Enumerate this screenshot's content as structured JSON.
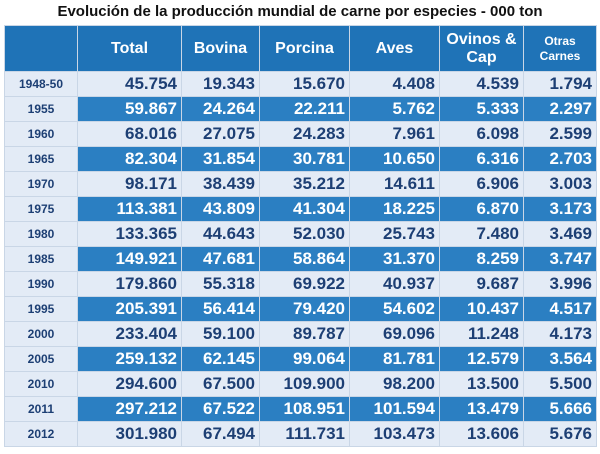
{
  "title": "Evolución de la producción mundial de carne por especies - 000 ton",
  "columns": {
    "total": "Total",
    "bovina": "Bovina",
    "porcina": "Porcina",
    "aves": "Aves",
    "ovinos_line1": "Ovinos &",
    "ovinos_line2": "Cap",
    "otras_line1": "Otras",
    "otras_line2": "Carnes"
  },
  "rows": [
    {
      "year": "1948-50",
      "total": "45.754",
      "bovina": "19.343",
      "porcina": "15.670",
      "aves": "4.408",
      "ovinos": "4.539",
      "otras": "1.794"
    },
    {
      "year": "1955",
      "total": "59.867",
      "bovina": "24.264",
      "porcina": "22.211",
      "aves": "5.762",
      "ovinos": "5.333",
      "otras": "2.297"
    },
    {
      "year": "1960",
      "total": "68.016",
      "bovina": "27.075",
      "porcina": "24.283",
      "aves": "7.961",
      "ovinos": "6.098",
      "otras": "2.599"
    },
    {
      "year": "1965",
      "total": "82.304",
      "bovina": "31.854",
      "porcina": "30.781",
      "aves": "10.650",
      "ovinos": "6.316",
      "otras": "2.703"
    },
    {
      "year": "1970",
      "total": "98.171",
      "bovina": "38.439",
      "porcina": "35.212",
      "aves": "14.611",
      "ovinos": "6.906",
      "otras": "3.003"
    },
    {
      "year": "1975",
      "total": "113.381",
      "bovina": "43.809",
      "porcina": "41.304",
      "aves": "18.225",
      "ovinos": "6.870",
      "otras": "3.173"
    },
    {
      "year": "1980",
      "total": "133.365",
      "bovina": "44.643",
      "porcina": "52.030",
      "aves": "25.743",
      "ovinos": "7.480",
      "otras": "3.469"
    },
    {
      "year": "1985",
      "total": "149.921",
      "bovina": "47.681",
      "porcina": "58.864",
      "aves": "31.370",
      "ovinos": "8.259",
      "otras": "3.747"
    },
    {
      "year": "1990",
      "total": "179.860",
      "bovina": "55.318",
      "porcina": "69.922",
      "aves": "40.937",
      "ovinos": "9.687",
      "otras": "3.996"
    },
    {
      "year": "1995",
      "total": "205.391",
      "bovina": "56.414",
      "porcina": "79.420",
      "aves": "54.602",
      "ovinos": "10.437",
      "otras": "4.517"
    },
    {
      "year": "2000",
      "total": "233.404",
      "bovina": "59.100",
      "porcina": "89.787",
      "aves": "69.096",
      "ovinos": "11.248",
      "otras": "4.173"
    },
    {
      "year": "2005",
      "total": "259.132",
      "bovina": "62.145",
      "porcina": "99.064",
      "aves": "81.781",
      "ovinos": "12.579",
      "otras": "3.564"
    },
    {
      "year": "2010",
      "total": "294.600",
      "bovina": "67.500",
      "porcina": "109.900",
      "aves": "98.200",
      "ovinos": "13.500",
      "otras": "5.500"
    },
    {
      "year": "2011",
      "total": "297.212",
      "bovina": "67.522",
      "porcina": "108.951",
      "aves": "101.594",
      "ovinos": "13.479",
      "otras": "5.666"
    },
    {
      "year": "2012",
      "total": "301.980",
      "bovina": "67.494",
      "porcina": "111.731",
      "aves": "103.473",
      "ovinos": "13.606",
      "otras": "5.676"
    }
  ],
  "colors": {
    "header_blue": "#1f73b7",
    "row_light": "#e3ebf6",
    "row_dark": "#2b7fc2",
    "text_dark": "#1d3f74"
  }
}
